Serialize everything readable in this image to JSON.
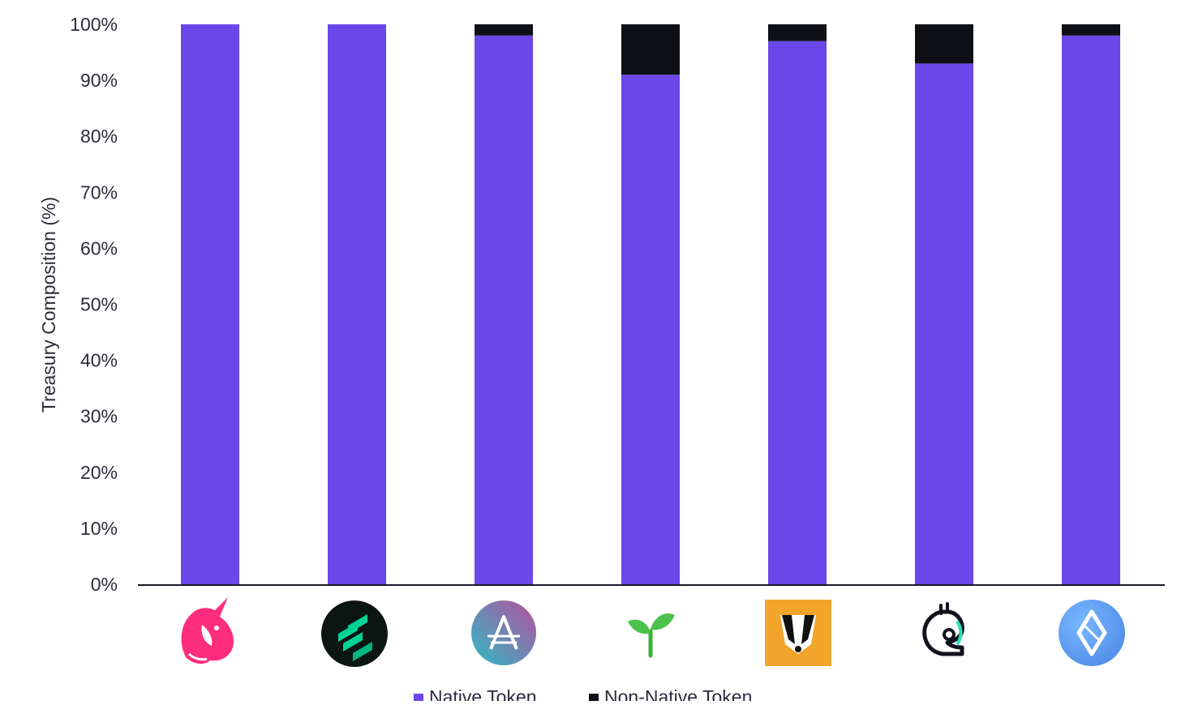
{
  "chart_data": {
    "type": "bar",
    "stacked": true,
    "title": "",
    "xlabel": "",
    "ylabel": "Treasury Composition (%)",
    "ylim": [
      0,
      100
    ],
    "yticks": [
      "0%",
      "10%",
      "20%",
      "30%",
      "40%",
      "50%",
      "60%",
      "70%",
      "80%",
      "90%",
      "100%"
    ],
    "grid": false,
    "legend_position": "bottom",
    "categories_icons": [
      "unicorn-logo-icon",
      "stacked-blocks-logo-icon",
      "letter-a-logo-icon",
      "sprout-logo-icon",
      "badger-logo-icon",
      "knight-logo-icon",
      "diamond-logo-icon"
    ],
    "series": [
      {
        "name": "Native Token",
        "color": "#6b46e8",
        "values": [
          100,
          100,
          98,
          91,
          97,
          93,
          98
        ]
      },
      {
        "name": "Non-Native Token",
        "color": "#0e1016",
        "values": [
          0,
          0,
          2,
          9,
          3,
          7,
          2
        ]
      }
    ]
  }
}
